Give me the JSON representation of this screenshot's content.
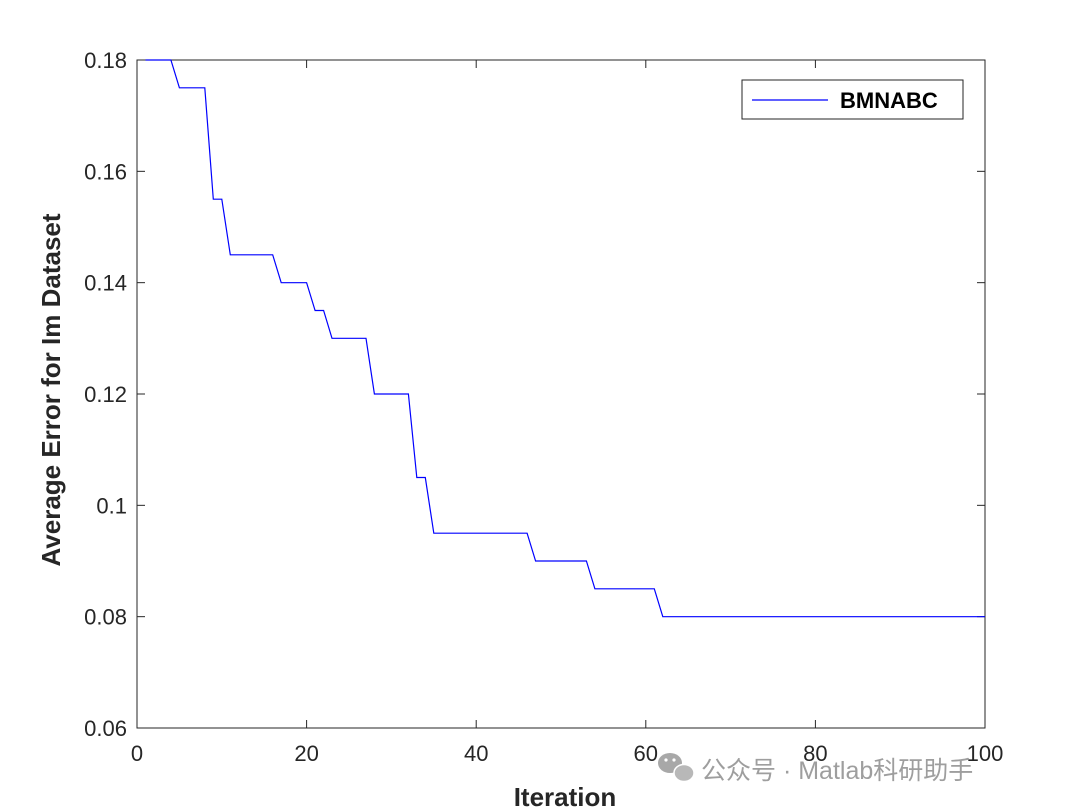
{
  "chart_data": {
    "type": "line",
    "title": "",
    "xlabel": "Iteration",
    "ylabel": "Average Error for Im Dataset",
    "xlim": [
      0,
      100
    ],
    "ylim": [
      0.06,
      0.18
    ],
    "xticks": [
      0,
      20,
      40,
      60,
      80,
      100
    ],
    "yticks": [
      0.06,
      0.08,
      0.1,
      0.12,
      0.14,
      0.16,
      0.18
    ],
    "xtick_labels": [
      "0",
      "20",
      "40",
      "60",
      "80",
      "100"
    ],
    "ytick_labels": [
      "0.06",
      "0.08",
      "0.1",
      "0.12",
      "0.14",
      "0.16",
      "0.18"
    ],
    "grid": false,
    "legend_position": "top-right",
    "series": [
      {
        "name": "BMNABC",
        "color": "#0000ff",
        "x": [
          1,
          4,
          5,
          8,
          9,
          10,
          11,
          16,
          17,
          20,
          21,
          22,
          23,
          27,
          28,
          32,
          33,
          34,
          35,
          46,
          47,
          53,
          54,
          61,
          62,
          100
        ],
        "y": [
          0.18,
          0.18,
          0.175,
          0.175,
          0.155,
          0.155,
          0.145,
          0.145,
          0.14,
          0.14,
          0.135,
          0.135,
          0.13,
          0.13,
          0.12,
          0.12,
          0.105,
          0.105,
          0.095,
          0.095,
          0.09,
          0.09,
          0.085,
          0.085,
          0.08,
          0.08
        ]
      }
    ]
  },
  "watermark": {
    "text": "公众号 · Matlab科研助手",
    "icon": "wechat-icon"
  }
}
